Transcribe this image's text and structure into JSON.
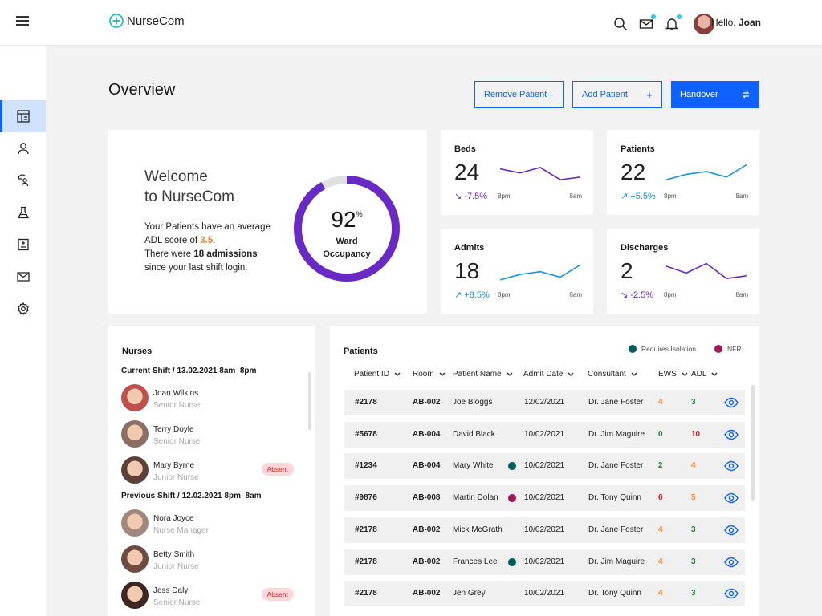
{
  "app": {
    "name": "NurseCom",
    "greeting": "Hello,",
    "user": "Joan"
  },
  "colors": {
    "primary": "#0f62fe",
    "isolation": "#005d5d",
    "nfr": "#9f1853",
    "purple": "#6929c4",
    "cyan": "#1192e8"
  },
  "page": {
    "title": "Overview"
  },
  "actions": {
    "remove": "Remove Patient",
    "remove_glyph": "−",
    "add": "Add Patient",
    "add_glyph": "+",
    "handover": "Handover",
    "handover_icon": "swap-icon"
  },
  "sidebar": {
    "items": [
      {
        "icon": "dashboard-icon",
        "active": true
      },
      {
        "icon": "person-icon"
      },
      {
        "icon": "patients-swap-icon"
      },
      {
        "icon": "flask-icon"
      },
      {
        "icon": "medical-chart-icon"
      },
      {
        "icon": "mail-icon"
      },
      {
        "icon": "settings-icon"
      }
    ]
  },
  "welcome": {
    "line1": "Welcome",
    "line2": "to NurseCom",
    "p1": "Your Patients have an average ADL score of",
    "adl": "3.5",
    "p1_end": ".",
    "p2": "There were",
    "admissions": "18 admissions",
    "p3": "since your last shift login.",
    "occupancy_value": 92,
    "occupancy_num": "92",
    "occupancy_unit": "%",
    "occupancy_l1": "Ward",
    "occupancy_l2": "Occupancy"
  },
  "stats": [
    {
      "title": "Beds",
      "value": "24",
      "change": "-7.5%",
      "arrow": "↘",
      "dir": "down",
      "from": "8pm",
      "to": "8am",
      "trend": [
        60,
        45,
        65,
        20,
        30
      ]
    },
    {
      "title": "Patients",
      "value": "22",
      "change": "+5.5%",
      "arrow": "↗",
      "dir": "up",
      "from": "8pm",
      "to": "8am",
      "trend": [
        20,
        40,
        50,
        30,
        75
      ]
    },
    {
      "title": "Admits",
      "value": "18",
      "change": "+8.5%",
      "arrow": "↗",
      "dir": "up",
      "from": "8pm",
      "to": "8am",
      "trend": [
        15,
        35,
        45,
        25,
        70
      ]
    },
    {
      "title": "Discharges",
      "value": "2",
      "change": "-2.5%",
      "arrow": "↘",
      "dir": "down",
      "from": "8pm",
      "to": "8am",
      "trend": [
        65,
        40,
        75,
        20,
        30
      ]
    }
  ],
  "nurses": {
    "title": "Nurses",
    "current_shift": "Current Shift / 13.02.2021 8am–8pm",
    "previous_shift": "Previous Shift / 12.02.2021 8pm–8am",
    "absent_label": "Absent",
    "current": [
      {
        "name": "Joan Wilkins",
        "role": "Senior Nurse",
        "absent": false
      },
      {
        "name": "Terry Doyle",
        "role": "Senior Nurse",
        "absent": false
      },
      {
        "name": "Mary Byrne",
        "role": "Junior Nurse",
        "absent": true
      }
    ],
    "previous": [
      {
        "name": "Nora Joyce",
        "role": "Nurse Manager",
        "absent": false
      },
      {
        "name": "Betty Smith",
        "role": "Junior Nurse",
        "absent": false
      },
      {
        "name": "Jess Daly",
        "role": "Senior Nurse",
        "absent": true
      }
    ]
  },
  "patients": {
    "title": "Patients",
    "legend": {
      "isolation": "Requires Isolation",
      "nfr": "NFR"
    },
    "columns": [
      "Patient ID",
      "Room",
      "Patient Name",
      "Admit Date",
      "Consultant",
      "EWS",
      "ADL"
    ],
    "rows": [
      {
        "id": "#2178",
        "room": "AB-002",
        "name": "Joe Bloggs",
        "flag": "",
        "date": "12/02/2021",
        "consultant": "Dr. Jane Foster",
        "ews": "4",
        "ews_c": "orange",
        "adl": "3",
        "adl_c": "green"
      },
      {
        "id": "#5678",
        "room": "AB-004",
        "name": "David Black",
        "flag": "",
        "date": "10/02/2021",
        "consultant": "Dr. Jim Maguire",
        "ews": "0",
        "ews_c": "green",
        "adl": "10",
        "adl_c": "red"
      },
      {
        "id": "#1234",
        "room": "AB-004",
        "name": "Mary White",
        "flag": "isolation",
        "date": "10/02/2021",
        "consultant": "Dr. Jane Foster",
        "ews": "2",
        "ews_c": "green",
        "adl": "4",
        "adl_c": "orange"
      },
      {
        "id": "#9876",
        "room": "AB-008",
        "name": "Martin Dolan",
        "flag": "nfr",
        "date": "10/02/2021",
        "consultant": "Dr. Tony Quinn",
        "ews": "6",
        "ews_c": "red",
        "adl": "5",
        "adl_c": "orange"
      },
      {
        "id": "#2178",
        "room": "AB-002",
        "name": "Mick McGrath",
        "flag": "",
        "date": "10/02/2021",
        "consultant": "Dr. Jane Foster",
        "ews": "4",
        "ews_c": "orange",
        "adl": "3",
        "adl_c": "green"
      },
      {
        "id": "#2178",
        "room": "AB-002",
        "name": "Frances Lee",
        "flag": "isolation",
        "date": "10/02/2021",
        "consultant": "Dr. Jim Maguire",
        "ews": "4",
        "ews_c": "orange",
        "adl": "3",
        "adl_c": "green"
      },
      {
        "id": "#2178",
        "room": "AB-002",
        "name": "Jen Grey",
        "flag": "",
        "date": "10/02/2021",
        "consultant": "Dr. Tony Quinn",
        "ews": "4",
        "ews_c": "orange",
        "adl": "3",
        "adl_c": "green"
      }
    ]
  }
}
